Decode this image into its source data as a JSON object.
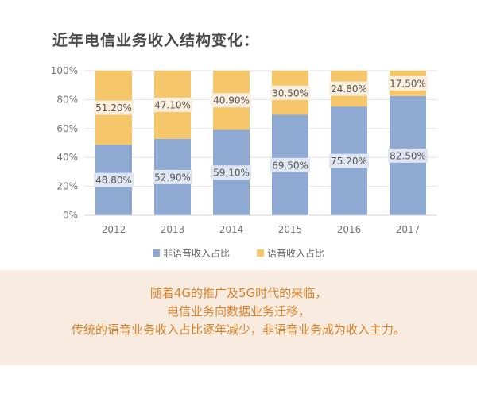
{
  "title": "近年电信业务收入结构变化：",
  "chart_data": {
    "type": "bar",
    "stacked": true,
    "percent": true,
    "categories": [
      "2012",
      "2013",
      "2014",
      "2015",
      "2016",
      "2017"
    ],
    "series": [
      {
        "name": "非语音收入占比",
        "color": "#8eaad3",
        "values": [
          48.8,
          52.9,
          59.1,
          69.5,
          75.2,
          82.5
        ],
        "labels": [
          "48.80%",
          "52.90%",
          "59.10%",
          "69.50%",
          "75.20%",
          "82.50%"
        ]
      },
      {
        "name": "语音收入占比",
        "color": "#f5c66a",
        "values": [
          51.2,
          47.1,
          40.9,
          30.5,
          24.8,
          17.5
        ],
        "labels": [
          "51.20%",
          "47.10%",
          "40.90%",
          "30.50%",
          "24.80%",
          "17.50%"
        ]
      }
    ],
    "y_ticks": [
      "0%",
      "20%",
      "40%",
      "60%",
      "80%",
      "100%"
    ],
    "ylim": [
      0,
      100
    ],
    "grid": true,
    "legend_position": "bottom"
  },
  "footer": {
    "lines": [
      "随着4G的推广及5G时代的来临，",
      "电信业务向数据业务迁移，",
      "传统的语音业务收入占比逐年减少，非语音业务成为收入主力。"
    ]
  }
}
